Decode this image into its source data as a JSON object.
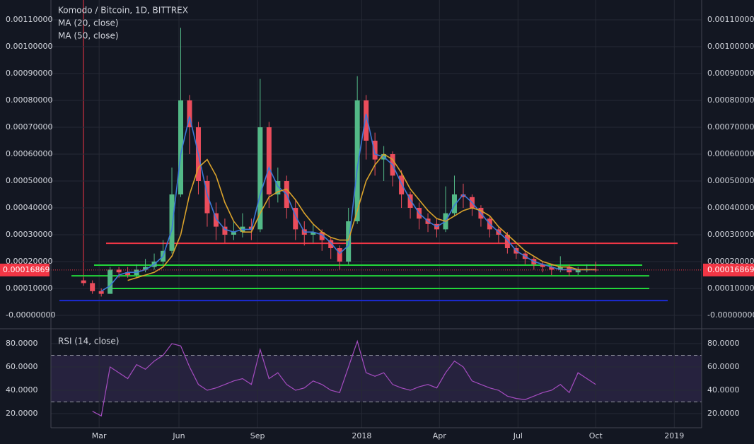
{
  "chart_data": [
    {
      "type": "candlestick",
      "title": "Komodo / Bitcoin, 1D, BITTREX",
      "xlim": [
        -3.7,
        70.0
      ],
      "ylim": [
        -5e-05,
        0.0011737
      ],
      "yticks": [
        {
          "value": 0,
          "label": "-0.00000000"
        },
        {
          "value": 0.0001,
          "label": "0.00010000"
        },
        {
          "value": 0.0002,
          "label": "0.00020000"
        },
        {
          "value": 0.0003,
          "label": "0.00030000"
        },
        {
          "value": 0.0004,
          "label": "0.00040000"
        },
        {
          "value": 0.0005,
          "label": "0.00050000"
        },
        {
          "value": 0.0006,
          "label": "0.00060000"
        },
        {
          "value": 0.0007,
          "label": "0.00070000"
        },
        {
          "value": 0.0008,
          "label": "0.00080000"
        },
        {
          "value": 0.0009,
          "label": "0.00090000"
        },
        {
          "value": 0.001,
          "label": "0.00100000"
        },
        {
          "value": 0.0011,
          "label": "0.00110000"
        }
      ],
      "grid": true,
      "up_color": "#53b987",
      "down_color": "#eb4d5c",
      "open": [
        0.00013,
        0.00012,
        9e-05,
        8e-05,
        0.00017,
        0.00016,
        0.00015,
        0.00017,
        0.00018,
        0.0002,
        0.00024,
        0.00045,
        0.0008,
        0.0007,
        0.0005,
        0.00038,
        0.00033,
        0.0003,
        0.00031,
        0.00033,
        0.00032,
        0.0007,
        0.00045,
        0.0005,
        0.0004,
        0.00032,
        0.0003,
        0.00031,
        0.00028,
        0.00025,
        0.0002,
        0.00035,
        0.0008,
        0.00065,
        0.00058,
        0.0006,
        0.00052,
        0.00045,
        0.0004,
        0.00036,
        0.00034,
        0.00032,
        0.00038,
        0.00045,
        0.00044,
        0.0004,
        0.00036,
        0.00032,
        0.0003,
        0.00025,
        0.00023,
        0.00021,
        0.00019,
        0.00018,
        0.00017,
        0.00018,
        0.00016,
        0.00017,
        0.00017
      ],
      "high": [
        0.00014,
        0.00013,
        0.0001,
        0.00018,
        0.00018,
        0.00018,
        0.00019,
        0.00021,
        0.00023,
        0.00028,
        0.00055,
        0.00107,
        0.00082,
        0.00072,
        0.00052,
        0.00042,
        0.00036,
        0.00035,
        0.00038,
        0.00036,
        0.00088,
        0.00072,
        0.00055,
        0.00052,
        0.00043,
        0.00035,
        0.00034,
        0.00032,
        0.00029,
        0.00026,
        0.0004,
        0.00089,
        0.00082,
        0.00068,
        0.00063,
        0.00061,
        0.00054,
        0.00046,
        0.00042,
        0.00038,
        0.00036,
        0.00048,
        0.00052,
        0.00049,
        0.00045,
        0.00041,
        0.00037,
        0.00033,
        0.00031,
        0.00026,
        0.00024,
        0.00022,
        0.0002,
        0.00019,
        0.00022,
        0.00019,
        0.00018,
        0.00019,
        0.0002
      ],
      "low": [
        0.00011,
        8e-05,
        7e-05,
        8e-05,
        0.00014,
        0.00014,
        0.00014,
        0.00016,
        0.00017,
        0.00019,
        0.00023,
        0.00044,
        0.0006,
        0.00045,
        0.00033,
        0.00028,
        0.00027,
        0.00028,
        0.00029,
        0.00028,
        0.00031,
        0.0004,
        0.00042,
        0.00036,
        0.00028,
        0.00026,
        0.00027,
        0.00024,
        0.00021,
        0.00017,
        0.00019,
        0.00034,
        0.00058,
        0.00052,
        0.0005,
        0.00048,
        0.0004,
        0.00036,
        0.00032,
        0.00031,
        0.00029,
        0.00031,
        0.00037,
        0.0004,
        0.00037,
        0.00033,
        0.00029,
        0.00027,
        0.00023,
        0.00021,
        0.00019,
        0.00017,
        0.00016,
        0.00015,
        0.00016,
        0.000145,
        0.00015,
        0.00016,
        0.00016
      ],
      "close": [
        0.00012,
        9e-05,
        8e-05,
        0.00017,
        0.00016,
        0.00015,
        0.00017,
        0.00018,
        0.0002,
        0.00024,
        0.00045,
        0.0008,
        0.0007,
        0.0005,
        0.00038,
        0.00033,
        0.0003,
        0.00031,
        0.00033,
        0.00032,
        0.0007,
        0.00045,
        0.0005,
        0.0004,
        0.00032,
        0.0003,
        0.00031,
        0.00028,
        0.00025,
        0.0002,
        0.00035,
        0.0008,
        0.00065,
        0.00058,
        0.0006,
        0.00052,
        0.00045,
        0.0004,
        0.00036,
        0.00034,
        0.00032,
        0.00038,
        0.00045,
        0.00044,
        0.0004,
        0.00036,
        0.00032,
        0.0003,
        0.00025,
        0.00023,
        0.00021,
        0.00019,
        0.00018,
        0.00017,
        0.00018,
        0.00016,
        0.00017,
        0.00017,
        0.00016869
      ],
      "series": [
        {
          "name": "MA (20, close)",
          "color": "#3c78d8",
          "values": [
            null,
            null,
            9e-05,
            0.00011,
            0.00015,
            0.00016,
            0.00016,
            0.00017,
            0.00019,
            0.00022,
            0.00032,
            0.0006,
            0.00074,
            0.0006,
            0.00045,
            0.00036,
            0.00032,
            0.00031,
            0.00032,
            0.00032,
            0.00045,
            0.00055,
            0.00048,
            0.00045,
            0.00037,
            0.00031,
            0.00031,
            0.0003,
            0.00027,
            0.00023,
            0.00026,
            0.00055,
            0.00075,
            0.0006,
            0.00059,
            0.00056,
            0.00049,
            0.00043,
            0.00038,
            0.00035,
            0.00033,
            0.00035,
            0.00041,
            0.00045,
            0.00042,
            0.00038,
            0.00034,
            0.00031,
            0.00028,
            0.00024,
            0.00022,
            0.0002,
            0.00019,
            0.00018,
            0.00017,
            0.00017,
            0.00017,
            0.00017,
            0.00017
          ]
        },
        {
          "name": "MA (50, close)",
          "color": "#d9a22b",
          "values": [
            null,
            null,
            null,
            null,
            null,
            0.00013,
            0.00014,
            0.00015,
            0.00016,
            0.00018,
            0.00022,
            0.0003,
            0.00045,
            0.00055,
            0.00058,
            0.00052,
            0.00042,
            0.00035,
            0.00031,
            0.00031,
            0.00038,
            0.00044,
            0.00046,
            0.00047,
            0.00043,
            0.00038,
            0.00034,
            0.00031,
            0.00029,
            0.00028,
            0.00028,
            0.00039,
            0.0005,
            0.00056,
            0.0006,
            0.00058,
            0.00053,
            0.00047,
            0.00043,
            0.00039,
            0.00036,
            0.00035,
            0.00037,
            0.00039,
            0.0004,
            0.00039,
            0.00037,
            0.00033,
            0.0003,
            0.00027,
            0.00024,
            0.00022,
            0.0002,
            0.00019,
            0.00018,
            0.00018,
            0.00017,
            0.00017,
            0.00017
          ]
        }
      ],
      "levels": [
        {
          "value": 0.000268,
          "color": "#f23645"
        },
        {
          "value": 0.000187,
          "color": "#22d63a"
        },
        {
          "value": 0.000147,
          "color": "#22d63a"
        },
        {
          "value": 0.0001,
          "color": "#22d63a"
        },
        {
          "value": 5.5e-05,
          "color": "#1b2bd6"
        }
      ],
      "last_price": {
        "value": 0.00016869,
        "label": "0.00016869",
        "color": "#f23645"
      }
    },
    {
      "type": "line",
      "title": "RSI (14, close)",
      "xlim": [
        -3.7,
        70.0
      ],
      "ylim": [
        7.9,
        92.7
      ],
      "yticks": [
        {
          "value": 20,
          "label": "20.0000"
        },
        {
          "value": 40,
          "label": "40.0000"
        },
        {
          "value": 60,
          "label": "60.0000"
        },
        {
          "value": 80,
          "label": "80.0000"
        }
      ],
      "xticks": [
        {
          "value": 1.76,
          "label": "Mar"
        },
        {
          "value": 10.8,
          "label": "Jun"
        },
        {
          "value": 19.7,
          "label": "Sep"
        },
        {
          "value": 31.5,
          "label": "2018"
        },
        {
          "value": 40.3,
          "label": "Apr"
        },
        {
          "value": 49.2,
          "label": "Jul"
        },
        {
          "value": 58.0,
          "label": "Oct"
        },
        {
          "value": 66.9,
          "label": "2019"
        }
      ],
      "grid": true,
      "band": [
        30,
        70
      ],
      "series": [
        {
          "name": "RSI",
          "color": "#a54cc0",
          "values": [
            null,
            22,
            18,
            60,
            55,
            50,
            62,
            58,
            65,
            70,
            80,
            78,
            60,
            45,
            40,
            42,
            45,
            48,
            50,
            45,
            75,
            50,
            55,
            45,
            40,
            42,
            48,
            45,
            40,
            38,
            60,
            82,
            55,
            52,
            55,
            45,
            42,
            40,
            43,
            45,
            42,
            55,
            65,
            60,
            48,
            45,
            42,
            40,
            35,
            33,
            32,
            35,
            38,
            40,
            45,
            38,
            55,
            50,
            45
          ]
        }
      ]
    }
  ]
}
